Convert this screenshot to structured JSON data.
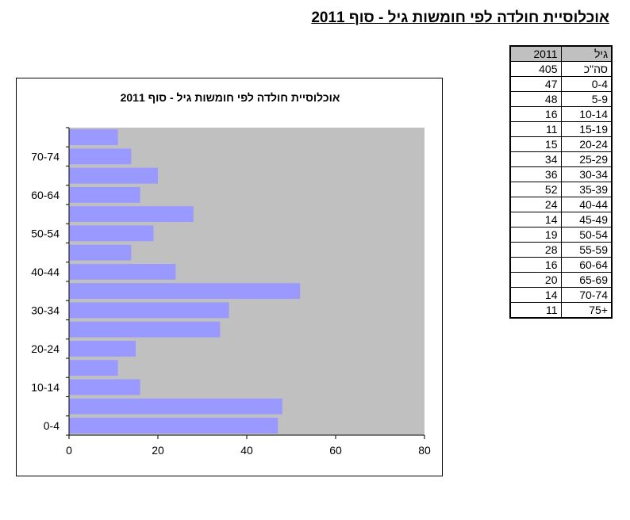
{
  "page_title": "אוכלוסיית חולדה לפי חומשות גיל - סוף 2011",
  "table": {
    "header": {
      "age": "גיל",
      "value": "2011"
    },
    "total": {
      "age": "סה\"כ",
      "value": "405"
    },
    "rows": [
      {
        "age": "0-4",
        "value": "47"
      },
      {
        "age": "5-9",
        "value": "48"
      },
      {
        "age": "10-14",
        "value": "16"
      },
      {
        "age": "15-19",
        "value": "11"
      },
      {
        "age": "20-24",
        "value": "15"
      },
      {
        "age": "25-29",
        "value": "34"
      },
      {
        "age": "30-34",
        "value": "36"
      },
      {
        "age": "35-39",
        "value": "52"
      },
      {
        "age": "40-44",
        "value": "24"
      },
      {
        "age": "45-49",
        "value": "14"
      },
      {
        "age": "50-54",
        "value": "19"
      },
      {
        "age": "55-59",
        "value": "28"
      },
      {
        "age": "60-64",
        "value": "16"
      },
      {
        "age": "65-69",
        "value": "20"
      },
      {
        "age": "70-74",
        "value": "14"
      },
      {
        "age": "75+",
        "value": "11"
      }
    ]
  },
  "chart_data": {
    "type": "bar",
    "orientation": "horizontal",
    "title": "אוכלוסיית חולדה לפי חומשות גיל - סוף 2011",
    "categories": [
      "0-4",
      "5-9",
      "10-14",
      "15-19",
      "20-24",
      "25-29",
      "30-34",
      "35-39",
      "40-44",
      "45-49",
      "50-54",
      "55-59",
      "60-64",
      "65-69",
      "70-74",
      "75+"
    ],
    "values": [
      47,
      48,
      16,
      11,
      15,
      34,
      36,
      52,
      24,
      14,
      19,
      28,
      16,
      20,
      14,
      11
    ],
    "category_tick_labels": [
      "0-4",
      "10-14",
      "20-24",
      "30-34",
      "40-44",
      "50-54",
      "60-64",
      "70-74"
    ],
    "value_axis": {
      "min": 0,
      "max": 80,
      "ticks": [
        0,
        20,
        40,
        60,
        80
      ]
    },
    "xlabel": "",
    "ylabel": "",
    "legend": "none",
    "grid": false,
    "colors": {
      "bar": "#9999ff",
      "plot_background": "#c0c0c0"
    }
  }
}
